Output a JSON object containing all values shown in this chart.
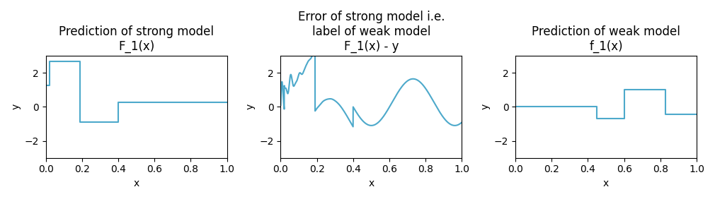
{
  "fig_width": 10.1,
  "fig_height": 2.82,
  "dpi": 100,
  "line_color": "#4da9cb",
  "bg_color": "#ffffff",
  "ylim": [
    -3,
    3
  ],
  "xlim": [
    0.0,
    1.0
  ],
  "plot1": {
    "title_line1": "Prediction of strong model",
    "title_line2": "F_1(x)",
    "xlabel": "x",
    "ylabel": "y",
    "steps": [
      [
        0.0,
        1.27
      ],
      [
        0.02,
        2.67
      ],
      [
        0.19,
        -0.9
      ],
      [
        0.4,
        0.27
      ],
      [
        1.0,
        0.27
      ]
    ]
  },
  "plot2": {
    "title_line1": "Error of strong model i.e.",
    "title_line2": "label of weak model",
    "title_line3": "F_1(x) - y",
    "xlabel": "x",
    "ylabel": "y",
    "sine_amp": 1.8,
    "sine_freq": 2.5,
    "sine_phase": 0.55,
    "hf_amp": 1.5,
    "hf_freq1": 18,
    "hf_freq2": 32,
    "hf_decay": 18
  },
  "plot3": {
    "title_line1": "Prediction of weak model",
    "title_line2": "f_1(x)",
    "xlabel": "x",
    "ylabel": "y",
    "steps": [
      [
        0.0,
        0.0
      ],
      [
        0.45,
        -0.7
      ],
      [
        0.6,
        1.0
      ],
      [
        0.83,
        -0.45
      ],
      [
        1.0,
        -0.45
      ]
    ]
  }
}
